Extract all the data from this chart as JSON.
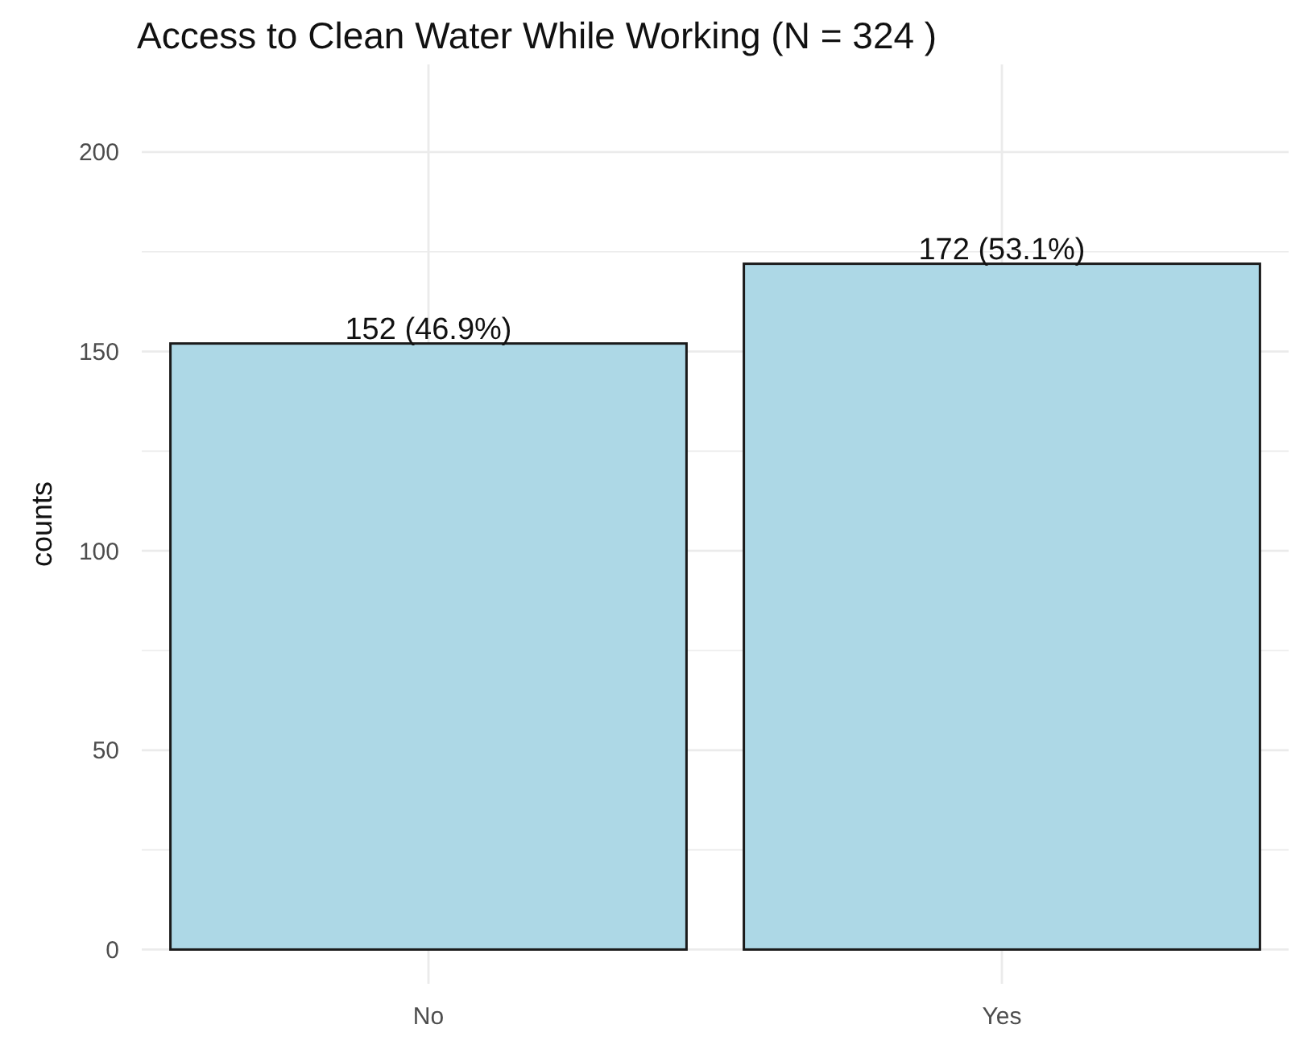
{
  "chart_data": {
    "type": "bar",
    "title": "Access to Clean Water While Working (N = 324 )",
    "ylabel": "counts",
    "categories": [
      "No",
      "Yes"
    ],
    "values": [
      152,
      172
    ],
    "color": "#add8e6",
    "value_labels": [
      "152 (46.9%)",
      "172 (53.1%)"
    ],
    "ylim": [
      -8.6,
      222
    ],
    "yticks": [
      0,
      {
        "value": 25,
        "label": null
      },
      50,
      {
        "value": 75,
        "label": null
      },
      100,
      {
        "value": 125,
        "label": null
      },
      150,
      {
        "value": 175,
        "label": null
      },
      200
    ],
    "grid": true
  }
}
